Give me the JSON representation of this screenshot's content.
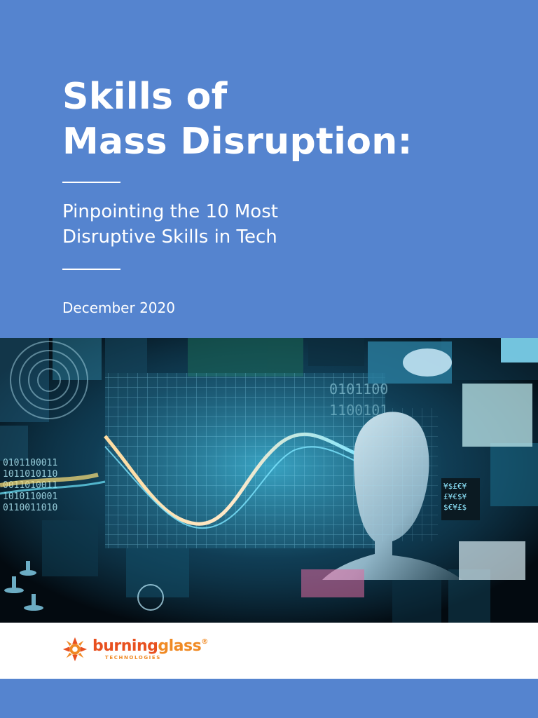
{
  "cover": {
    "title_line1": "Skills of",
    "title_line2": "Mass Disruption:",
    "subtitle_line1": "Pinpointing the 10 Most",
    "subtitle_line2": "Disruptive Skills in Tech",
    "date": "December 2020"
  },
  "logo": {
    "word_part1": "burning",
    "word_part2": "glass",
    "tagline": "TECHNOLOGIES",
    "registered": "®"
  },
  "colors": {
    "background_blue": "#5584cf",
    "text": "#ffffff",
    "logo_red": "#e8501f",
    "logo_orange": "#f08a24"
  },
  "hero_image": {
    "icon": "digital-data-collage-image",
    "binary_text": [
      "0101100011",
      "1011010110",
      "0011010011",
      "1010110001",
      "0110011010"
    ]
  }
}
